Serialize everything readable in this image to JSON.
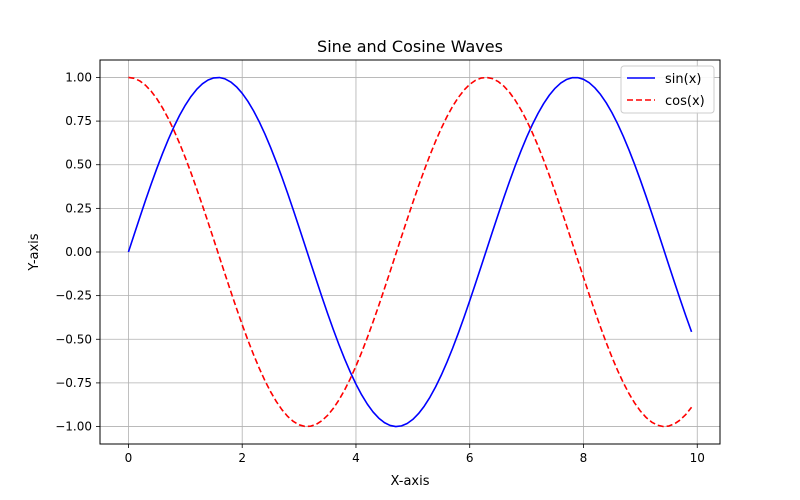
{
  "chart_data": {
    "type": "line",
    "title": "Sine and Cosine Waves",
    "xlabel": "X-axis",
    "ylabel": "Y-axis",
    "xlim": [
      -0.5,
      10.4
    ],
    "ylim": [
      -1.1,
      1.1
    ],
    "x_ticks": [
      0,
      2,
      4,
      6,
      8,
      10
    ],
    "x_tick_labels": [
      "0",
      "2",
      "4",
      "6",
      "8",
      "10"
    ],
    "y_ticks": [
      -1.0,
      -0.75,
      -0.5,
      -0.25,
      0.0,
      0.25,
      0.5,
      0.75,
      1.0
    ],
    "y_tick_labels": [
      "−1.00",
      "−0.75",
      "−0.50",
      "−0.25",
      "0.00",
      "0.25",
      "0.50",
      "0.75",
      "1.00"
    ],
    "grid": true,
    "legend_position": "top-right",
    "x_range": {
      "start": 0,
      "end": 9.9,
      "step": 0.1
    },
    "series": [
      {
        "name": "sin(x)",
        "function": "sin",
        "color": "#0000ff",
        "line_style": "solid"
      },
      {
        "name": "cos(x)",
        "function": "cos",
        "color": "#ff0000",
        "line_style": "dashed"
      }
    ]
  }
}
